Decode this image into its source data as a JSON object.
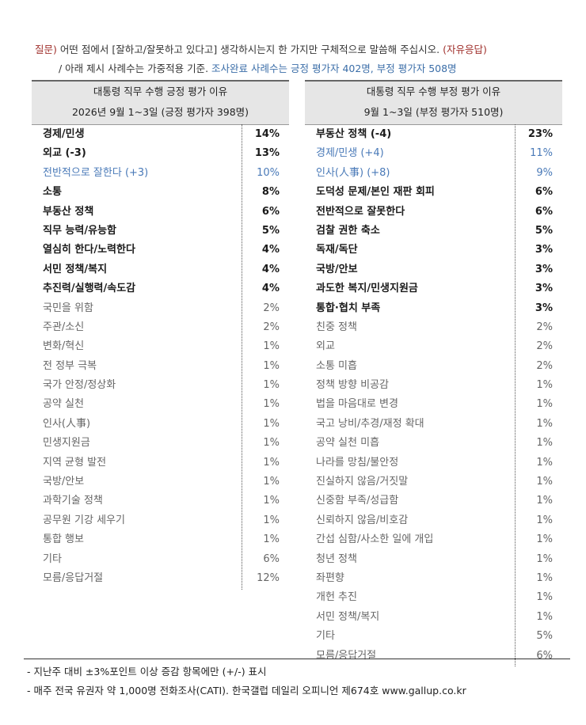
{
  "header": {
    "question_label": "질문)",
    "question": "어떤 점에서 [잘하고/잘못하고 있다고] 생각하시는지 한 가지만 구체적으로 말씀해 주십시오.",
    "question_tag": "(자유응답)",
    "note": "/ 아래 제시 사례수는 가중적용 기준.",
    "note_highlight": "조사완료 사례수는 긍정 평가자 402명, 부정 평가자 508명"
  },
  "tables": [
    {
      "title": "대통령 직무 수행 긍정 평가 이유",
      "subtitle": "2026년 9월 1~3일 (긍정 평가자 398명)",
      "rows": [
        {
          "label": "경제/민생",
          "value": "14%",
          "style": "bold"
        },
        {
          "label": "외교 (-3)",
          "value": "13%",
          "style": "bold"
        },
        {
          "label": "전반적으로 잘한다 (+3)",
          "value": "10%",
          "style": "blue"
        },
        {
          "label": "소통",
          "value": "8%",
          "style": "bold"
        },
        {
          "label": "부동산 정책",
          "value": "6%",
          "style": "bold"
        },
        {
          "label": "직무 능력/유능함",
          "value": "5%",
          "style": "bold"
        },
        {
          "label": "열심히 한다/노력한다",
          "value": "4%",
          "style": "bold"
        },
        {
          "label": "서민 정책/복지",
          "value": "4%",
          "style": "bold"
        },
        {
          "label": "추진력/실행력/속도감",
          "value": "4%",
          "style": "bold"
        },
        {
          "label": "국민을 위함",
          "value": "2%",
          "style": "gray"
        },
        {
          "label": "주관/소신",
          "value": "2%",
          "style": "gray"
        },
        {
          "label": "변화/혁신",
          "value": "1%",
          "style": "gray"
        },
        {
          "label": "전 정부 극복",
          "value": "1%",
          "style": "gray"
        },
        {
          "label": "국가 안정/정상화",
          "value": "1%",
          "style": "gray"
        },
        {
          "label": "공약 실천",
          "value": "1%",
          "style": "gray"
        },
        {
          "label": "인사(人事)",
          "value": "1%",
          "style": "gray"
        },
        {
          "label": "민생지원금",
          "value": "1%",
          "style": "gray"
        },
        {
          "label": "지역 균형 발전",
          "value": "1%",
          "style": "gray"
        },
        {
          "label": "국방/안보",
          "value": "1%",
          "style": "gray"
        },
        {
          "label": "과학기술 정책",
          "value": "1%",
          "style": "gray"
        },
        {
          "label": "공무원 기강 세우기",
          "value": "1%",
          "style": "gray"
        },
        {
          "label": "통합 행보",
          "value": "1%",
          "style": "gray"
        },
        {
          "label": "기타",
          "value": "6%",
          "style": "gray"
        },
        {
          "label": "모름/응답거절",
          "value": "12%",
          "style": "gray"
        }
      ]
    },
    {
      "title": "대통령 직무 수행 부정 평가 이유",
      "subtitle": "9월 1~3일 (부정 평가자 510명)",
      "rows": [
        {
          "label": "부동산 정책 (-4)",
          "value": "23%",
          "style": "bold"
        },
        {
          "label": "경제/민생 (+4)",
          "value": "11%",
          "style": "blue"
        },
        {
          "label": "인사(人事) (+8)",
          "value": "9%",
          "style": "blue"
        },
        {
          "label": "도덕성 문제/본인 재판 회피",
          "value": "6%",
          "style": "bold"
        },
        {
          "label": "전반적으로 잘못한다",
          "value": "6%",
          "style": "bold"
        },
        {
          "label": "검찰 권한 축소",
          "value": "5%",
          "style": "bold"
        },
        {
          "label": "독재/독단",
          "value": "3%",
          "style": "bold"
        },
        {
          "label": "국방/안보",
          "value": "3%",
          "style": "bold"
        },
        {
          "label": "과도한 복지/민생지원금",
          "value": "3%",
          "style": "bold"
        },
        {
          "label": "통합·협치 부족",
          "value": "3%",
          "style": "bold"
        },
        {
          "label": "친중 정책",
          "value": "2%",
          "style": "gray"
        },
        {
          "label": "외교",
          "value": "2%",
          "style": "gray"
        },
        {
          "label": "소통 미흡",
          "value": "2%",
          "style": "gray"
        },
        {
          "label": "정책 방향 비공감",
          "value": "1%",
          "style": "gray"
        },
        {
          "label": "법을 마음대로 변경",
          "value": "1%",
          "style": "gray"
        },
        {
          "label": "국고 낭비/추경/재정 확대",
          "value": "1%",
          "style": "gray"
        },
        {
          "label": "공약 실천 미흡",
          "value": "1%",
          "style": "gray"
        },
        {
          "label": "나라를 망침/불안정",
          "value": "1%",
          "style": "gray"
        },
        {
          "label": "진실하지 않음/거짓말",
          "value": "1%",
          "style": "gray"
        },
        {
          "label": "신중함 부족/성급함",
          "value": "1%",
          "style": "gray"
        },
        {
          "label": "신뢰하지 않음/비호감",
          "value": "1%",
          "style": "gray"
        },
        {
          "label": "간섭 심함/사소한 일에 개입",
          "value": "1%",
          "style": "gray"
        },
        {
          "label": "청년 정책",
          "value": "1%",
          "style": "gray"
        },
        {
          "label": "좌편향",
          "value": "1%",
          "style": "gray"
        },
        {
          "label": "개헌 추진",
          "value": "1%",
          "style": "gray"
        },
        {
          "label": "서민 정책/복지",
          "value": "1%",
          "style": "gray"
        },
        {
          "label": "기타",
          "value": "5%",
          "style": "gray"
        },
        {
          "label": "모름/응답거절",
          "value": "6%",
          "style": "gray"
        }
      ]
    }
  ],
  "footnotes": [
    "- 지난주 대비 ±3%포인트 이상 증감 항목에만 (+/-) 표시",
    "- 매주 전국 유권자 약 1,000명 전화조사(CATI). 한국갤럽 데일리 오피니언 제674호 www.gallup.co.kr"
  ]
}
